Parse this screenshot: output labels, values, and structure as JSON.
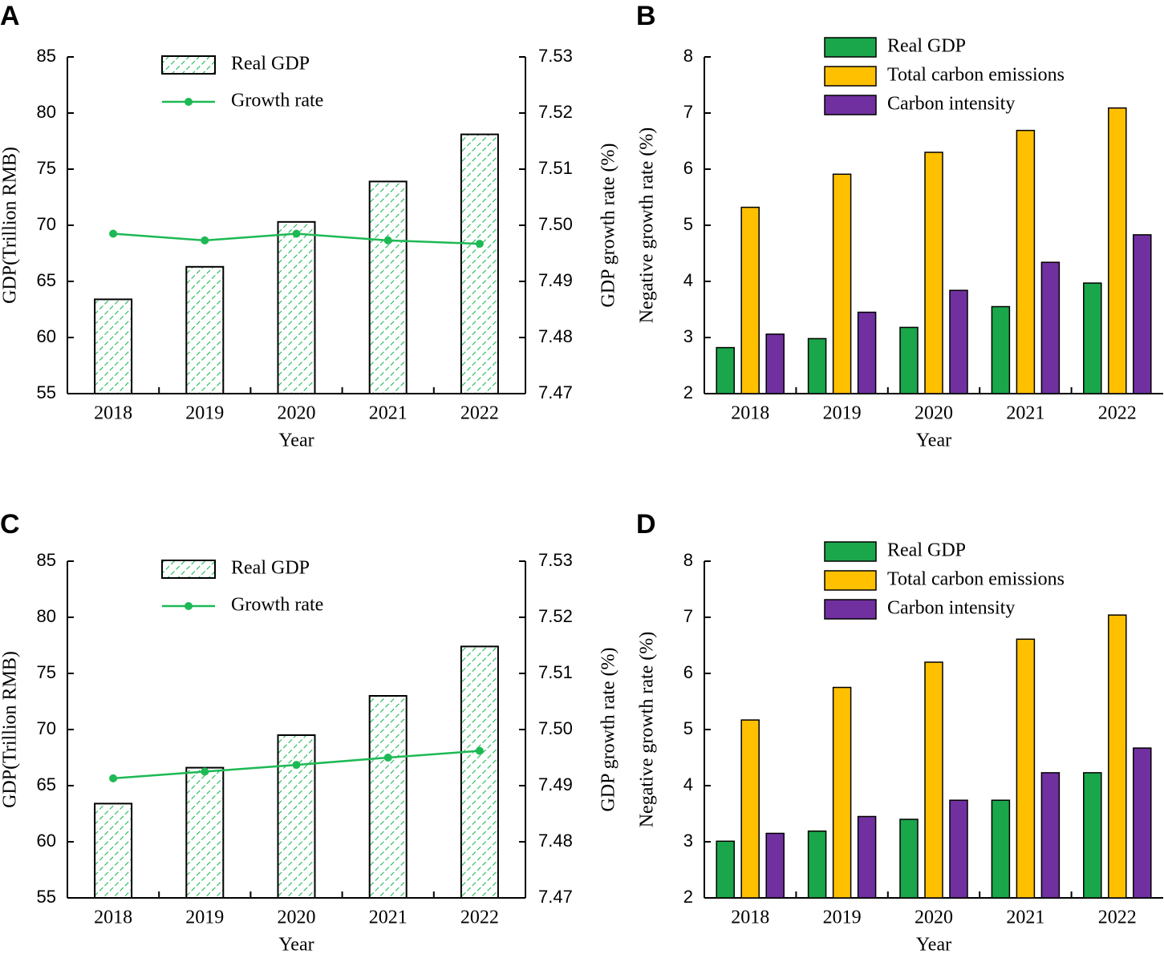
{
  "chart_data": [
    {
      "panel": "A",
      "type": "bar+line",
      "categories": [
        "2018",
        "2019",
        "2020",
        "2021",
        "2022"
      ],
      "xlabel": "Year",
      "ylabel": "GDP(Trillion RMB)",
      "y2label": "GDP growth rate (%)",
      "ylim": [
        55,
        85
      ],
      "yticks": [
        "55",
        "60",
        "65",
        "70",
        "75",
        "80",
        "85"
      ],
      "y2lim": [
        7.47,
        7.53
      ],
      "y2ticks": [
        "7.47",
        "7.48",
        "7.49",
        "7.50",
        "7.51",
        "7.52",
        "7.53"
      ],
      "series": [
        {
          "name": "Real GDP",
          "kind": "bar",
          "axis": "left",
          "values": [
            63.4,
            66.3,
            70.3,
            73.9,
            78.1
          ]
        },
        {
          "name": "Growth rate",
          "kind": "line",
          "axis": "right",
          "values": [
            7.4985,
            7.4973,
            7.4985,
            7.4973,
            7.4967
          ]
        }
      ],
      "legend": [
        "Real GDP",
        "Growth rate"
      ],
      "colors": {
        "accent": "#1db954"
      }
    },
    {
      "panel": "B",
      "type": "bar",
      "categories": [
        "2018",
        "2019",
        "2020",
        "2021",
        "2022"
      ],
      "xlabel": "Year",
      "ylabel": "Negative growth rate (%)",
      "ylim": [
        2,
        8
      ],
      "yticks": [
        "2",
        "3",
        "4",
        "5",
        "6",
        "7",
        "8"
      ],
      "series": [
        {
          "name": "Real GDP",
          "color": "#1aa64a",
          "values": [
            2.82,
            2.98,
            3.18,
            3.55,
            3.97
          ]
        },
        {
          "name": "Total carbon emissions",
          "color": "#ffc000",
          "values": [
            5.32,
            5.91,
            6.3,
            6.69,
            7.09
          ]
        },
        {
          "name": "Carbon intensity",
          "color": "#7030a0",
          "values": [
            3.06,
            3.45,
            3.84,
            4.34,
            4.83
          ]
        }
      ]
    },
    {
      "panel": "C",
      "type": "bar+line",
      "categories": [
        "2018",
        "2019",
        "2020",
        "2021",
        "2022"
      ],
      "xlabel": "Year",
      "ylabel": "GDP(Trillion RMB)",
      "y2label": "GDP growth rate (%)",
      "ylim": [
        55,
        85
      ],
      "yticks": [
        "55",
        "60",
        "65",
        "70",
        "75",
        "80",
        "85"
      ],
      "y2lim": [
        7.47,
        7.53
      ],
      "y2ticks": [
        "7.47",
        "7.48",
        "7.49",
        "7.50",
        "7.51",
        "7.52",
        "7.53"
      ],
      "series": [
        {
          "name": "Real GDP",
          "kind": "bar",
          "axis": "left",
          "values": [
            63.4,
            66.6,
            69.5,
            73.0,
            77.4
          ]
        },
        {
          "name": "Growth rate",
          "kind": "line",
          "axis": "right",
          "values": [
            7.4913,
            7.4925,
            7.4937,
            7.495,
            7.4962
          ]
        }
      ],
      "legend": [
        "Real GDP",
        "Growth rate"
      ],
      "colors": {
        "accent": "#1db954"
      }
    },
    {
      "panel": "D",
      "type": "bar",
      "categories": [
        "2018",
        "2019",
        "2020",
        "2021",
        "2022"
      ],
      "xlabel": "Year",
      "ylabel": "Negative growth rate (%)",
      "ylim": [
        2,
        8
      ],
      "yticks": [
        "2",
        "3",
        "4",
        "5",
        "6",
        "7",
        "8"
      ],
      "series": [
        {
          "name": "Real GDP",
          "color": "#1aa64a",
          "values": [
            3.01,
            3.19,
            3.4,
            3.74,
            4.23
          ]
        },
        {
          "name": "Total carbon emissions",
          "color": "#ffc000",
          "values": [
            5.17,
            5.75,
            6.2,
            6.61,
            7.04
          ]
        },
        {
          "name": "Carbon intensity",
          "color": "#7030a0",
          "values": [
            3.15,
            3.45,
            3.74,
            4.23,
            4.67
          ]
        }
      ]
    }
  ]
}
